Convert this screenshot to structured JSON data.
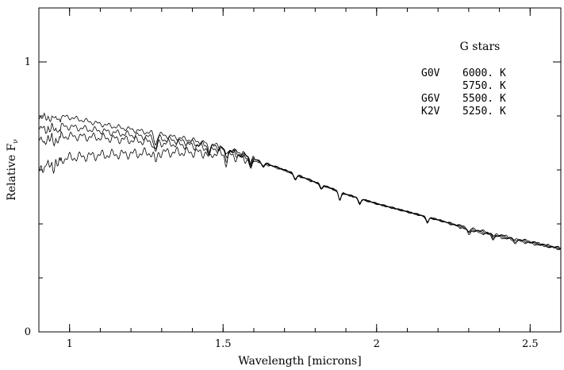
{
  "chart_data": {
    "type": "line",
    "xlabel": "Wavelength [microns]",
    "ylabel": "Relative F",
    "ylabel_sub": "ν",
    "xlim": [
      0.9,
      2.6
    ],
    "ylim": [
      0,
      1.2
    ],
    "x_ticks": [
      1,
      1.5,
      2,
      2.5
    ],
    "x_tick_labels": [
      "1",
      "1.5",
      "2",
      "2.5"
    ],
    "x_minor_step": 0.1,
    "y_ticks": [
      0,
      1
    ],
    "y_tick_labels": [
      "0",
      "1"
    ],
    "y_minor_step": 0.2,
    "grid": false,
    "legend": {
      "placement": "top-right",
      "title": "G stars",
      "entries": [
        {
          "type": "G0V",
          "temp": "6000. K"
        },
        {
          "type": "",
          "temp": "5750. K"
        },
        {
          "type": "G6V",
          "temp": "5500. K"
        },
        {
          "type": "K2V",
          "temp": "5250. K"
        }
      ]
    },
    "series": [
      {
        "x": [
          0.9,
          1.0,
          1.1,
          1.2,
          1.3,
          1.4,
          1.5,
          1.6,
          1.7,
          1.8,
          1.9,
          2.0,
          2.1,
          2.2,
          2.3,
          2.4,
          2.5,
          2.6
        ],
        "values": [
          0.805,
          0.795,
          0.77,
          0.75,
          0.73,
          0.71,
          0.685,
          0.64,
          0.6,
          0.555,
          0.51,
          0.475,
          0.445,
          0.415,
          0.385,
          0.36,
          0.335,
          0.31
        ]
      },
      {
        "x": [
          0.9,
          1.0,
          1.1,
          1.2,
          1.3,
          1.4,
          1.5,
          1.6,
          1.7,
          1.8,
          1.9,
          2.0,
          2.1,
          2.2,
          2.3,
          2.4,
          2.5,
          2.6
        ],
        "values": [
          0.765,
          0.76,
          0.745,
          0.73,
          0.715,
          0.7,
          0.68,
          0.64,
          0.6,
          0.555,
          0.51,
          0.475,
          0.445,
          0.415,
          0.383,
          0.357,
          0.333,
          0.309
        ]
      },
      {
        "x": [
          0.9,
          1.0,
          1.1,
          1.2,
          1.3,
          1.4,
          1.5,
          1.6,
          1.7,
          1.8,
          1.9,
          2.0,
          2.1,
          2.2,
          2.3,
          2.4,
          2.5,
          2.6
        ],
        "values": [
          0.725,
          0.725,
          0.72,
          0.71,
          0.7,
          0.69,
          0.675,
          0.64,
          0.6,
          0.555,
          0.51,
          0.475,
          0.445,
          0.415,
          0.38,
          0.354,
          0.331,
          0.308
        ]
      },
      {
        "x": [
          0.9,
          1.0,
          1.1,
          1.2,
          1.3,
          1.4,
          1.5,
          1.6,
          1.7,
          1.8,
          1.9,
          2.0,
          2.1,
          2.2,
          2.3,
          2.4,
          2.5,
          2.6
        ],
        "values": [
          0.625,
          0.645,
          0.655,
          0.66,
          0.665,
          0.665,
          0.66,
          0.635,
          0.598,
          0.553,
          0.51,
          0.475,
          0.445,
          0.415,
          0.377,
          0.351,
          0.328,
          0.307
        ]
      }
    ],
    "absorption_features": [
      {
        "x": 1.28,
        "depth": 0.04
      },
      {
        "x": 1.455,
        "depth": 0.025
      },
      {
        "x": 1.51,
        "depth": 0.03
      },
      {
        "x": 1.59,
        "depth": 0.025
      },
      {
        "x": 1.63,
        "depth": 0.015
      },
      {
        "x": 1.735,
        "depth": 0.02
      },
      {
        "x": 1.82,
        "depth": 0.015
      },
      {
        "x": 1.88,
        "depth": 0.03
      },
      {
        "x": 1.945,
        "depth": 0.02
      },
      {
        "x": 2.165,
        "depth": 0.02
      },
      {
        "x": 2.3,
        "depth": 0.015
      },
      {
        "x": 2.38,
        "depth": 0.012
      },
      {
        "x": 2.45,
        "depth": 0.01
      }
    ]
  }
}
